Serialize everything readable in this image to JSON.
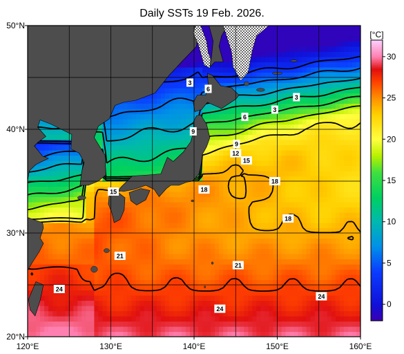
{
  "title": "Daily SSTs 19 Feb. 2026.",
  "map": {
    "lon_range": [
      120,
      160
    ],
    "lat_range": [
      20,
      50
    ],
    "x_ticks": [
      {
        "value": 120,
        "label": "120°E"
      },
      {
        "value": 130,
        "label": "130°E"
      },
      {
        "value": 140,
        "label": "140°E"
      },
      {
        "value": 150,
        "label": "150°E"
      },
      {
        "value": 160,
        "label": "160°E"
      }
    ],
    "y_ticks": [
      {
        "value": 20,
        "label": "20°N"
      },
      {
        "value": 30,
        "label": "30°N"
      },
      {
        "value": 40,
        "label": "40°N"
      },
      {
        "value": 50,
        "label": "50°N"
      }
    ],
    "grid_step_deg": 5,
    "grid": true,
    "land_color": "#4d4d4d",
    "sea_ice_pattern": "dotted",
    "contour_labels": [
      {
        "text": "3",
        "lon": 139.5,
        "lat": 44.5
      },
      {
        "text": "6",
        "lon": 141.7,
        "lat": 43.9
      },
      {
        "text": "3",
        "lon": 152.3,
        "lat": 43.1
      },
      {
        "text": "3",
        "lon": 149.7,
        "lat": 41.9
      },
      {
        "text": "6",
        "lon": 146.1,
        "lat": 41.2
      },
      {
        "text": "9",
        "lon": 139.9,
        "lat": 39.8
      },
      {
        "text": "9",
        "lon": 145.1,
        "lat": 38.6
      },
      {
        "text": "12",
        "lon": 145.0,
        "lat": 37.7
      },
      {
        "text": "15",
        "lon": 146.3,
        "lat": 37.0
      },
      {
        "text": "15",
        "lon": 130.3,
        "lat": 34.0
      },
      {
        "text": "18",
        "lon": 141.2,
        "lat": 34.2
      },
      {
        "text": "18",
        "lon": 149.7,
        "lat": 35.0
      },
      {
        "text": "18",
        "lon": 151.3,
        "lat": 31.4
      },
      {
        "text": "21",
        "lon": 131.1,
        "lat": 27.8
      },
      {
        "text": "21",
        "lon": 145.3,
        "lat": 26.9
      },
      {
        "text": "24",
        "lon": 123.8,
        "lat": 24.6
      },
      {
        "text": "24",
        "lon": 155.3,
        "lat": 23.9
      },
      {
        "text": "24",
        "lon": 143.1,
        "lat": 22.7
      }
    ]
  },
  "colorbar": {
    "unit": "[°C]",
    "min": -2,
    "max": 32,
    "ticks": [
      0,
      5,
      10,
      15,
      20,
      25,
      30
    ],
    "stops": [
      {
        "value": -2,
        "color": "#3a00b0"
      },
      {
        "value": 0,
        "color": "#1010d8"
      },
      {
        "value": 4,
        "color": "#0a3cff"
      },
      {
        "value": 7,
        "color": "#0090e8"
      },
      {
        "value": 10,
        "color": "#00b8b0"
      },
      {
        "value": 13,
        "color": "#00d060"
      },
      {
        "value": 16,
        "color": "#40e040"
      },
      {
        "value": 18,
        "color": "#b8f000"
      },
      {
        "value": 20,
        "color": "#ffff40"
      },
      {
        "value": 23,
        "color": "#ffd000"
      },
      {
        "value": 25,
        "color": "#ff9000"
      },
      {
        "value": 27,
        "color": "#ff4000"
      },
      {
        "value": 28.5,
        "color": "#e01010"
      },
      {
        "value": 30,
        "color": "#ff80b0"
      },
      {
        "value": 32,
        "color": "#ffd0ff"
      }
    ]
  }
}
